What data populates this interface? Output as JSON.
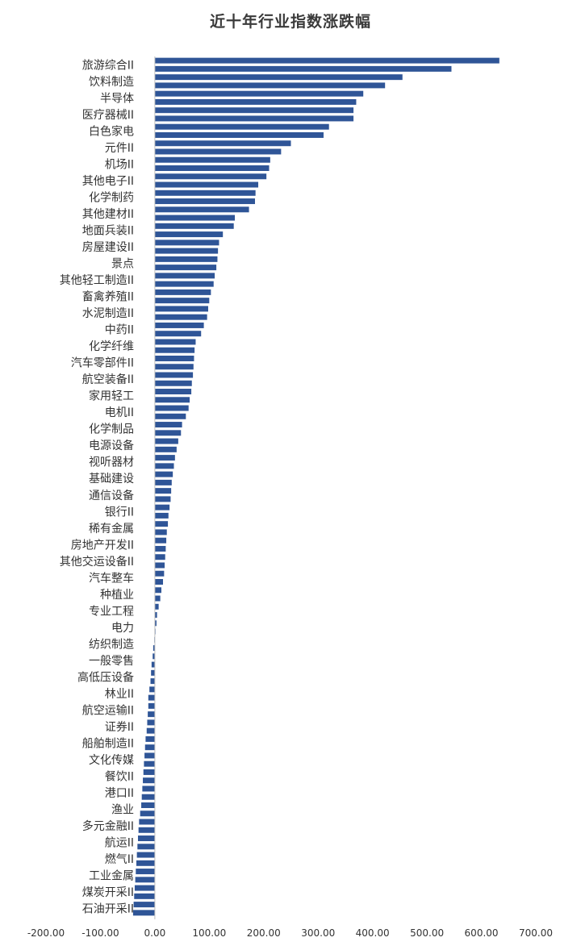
{
  "chart_data": {
    "type": "bar",
    "orientation": "horizontal",
    "title": "近十年行业指数涨跌幅",
    "xlim": [
      -200,
      700
    ],
    "x_ticks": [
      "-200.00",
      "-100.00",
      "0.00",
      "100.00",
      "200.00",
      "300.00",
      "400.00",
      "500.00",
      "600.00",
      "700.00"
    ],
    "bar_color": "#2f5597",
    "grid": false,
    "legend": "none",
    "label_every": 2,
    "categories": [
      "旅游综合II",
      "",
      "饮料制造",
      "",
      "半导体",
      "",
      "医疗器械II",
      "",
      "白色家电",
      "",
      "元件II",
      "",
      "机场II",
      "",
      "其他电子II",
      "",
      "化学制药",
      "",
      "其他建材II",
      "",
      "地面兵装II",
      "",
      "房屋建设II",
      "",
      "景点",
      "",
      "其他轻工制造II",
      "",
      "畜禽养殖II",
      "",
      "水泥制造II",
      "",
      "中药II",
      "",
      "化学纤维",
      "",
      "汽车零部件II",
      "",
      "航空装备II",
      "",
      "家用轻工",
      "",
      "电机II",
      "",
      "化学制品",
      "",
      "电源设备",
      "",
      "视听器材",
      "",
      "基础建设",
      "",
      "通信设备",
      "",
      "银行II",
      "",
      "稀有金属",
      "",
      "房地产开发II",
      "",
      "其他交运设备II",
      "",
      "汽车整车",
      "",
      "种植业",
      "",
      "专业工程",
      "",
      "电力",
      "",
      "纺织制造",
      "",
      "一般零售",
      "",
      "高低压设备",
      "",
      "林业II",
      "",
      "航空运输II",
      "",
      "证券II",
      "",
      "船舶制造II",
      "",
      "文化传媒",
      "",
      "餐饮II",
      "",
      "港口II",
      "",
      "渔业",
      "",
      "多元金融II",
      "",
      "航运II",
      "",
      "燃气II",
      "",
      "工业金属",
      "",
      "煤炭开采II",
      "",
      "石油开采II",
      ""
    ],
    "values": [
      633,
      545,
      455,
      423,
      383,
      370,
      365,
      365,
      320,
      310,
      250,
      232,
      212,
      210,
      205,
      190,
      185,
      184,
      173,
      147,
      145,
      125,
      118,
      116,
      115,
      113,
      110,
      108,
      103,
      100,
      98,
      96,
      90,
      85,
      75,
      73,
      72,
      71,
      70,
      68,
      67,
      64,
      62,
      57,
      50,
      48,
      43,
      40,
      37,
      35,
      33,
      31,
      30,
      29,
      27,
      25,
      24,
      22,
      21,
      20,
      19,
      18,
      17,
      15,
      12,
      10,
      7,
      4,
      3,
      1,
      -1,
      -3,
      -4,
      -6,
      -7,
      -8,
      -10,
      -12,
      -12,
      -13,
      -14,
      -15,
      -17,
      -18,
      -19,
      -20,
      -21,
      -22,
      -23,
      -24,
      -25,
      -27,
      -29,
      -30,
      -31,
      -32,
      -33,
      -34,
      -35,
      -36,
      -37,
      -38,
      -39,
      -40
    ]
  }
}
